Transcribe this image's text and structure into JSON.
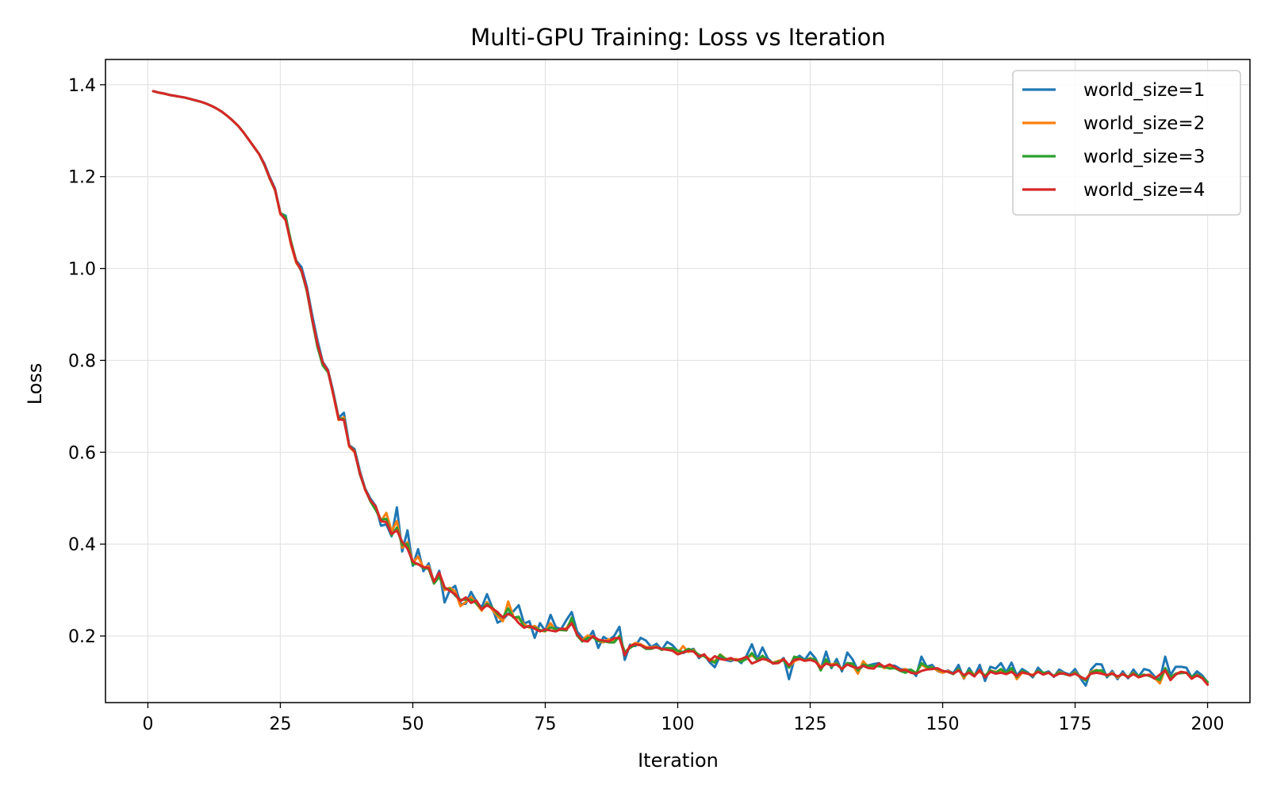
{
  "chart_data": {
    "type": "line",
    "title": "Multi-GPU Training: Loss vs Iteration",
    "xlabel": "Iteration",
    "ylabel": "Loss",
    "xlim": [
      -8,
      208
    ],
    "ylim": [
      0.055,
      1.455
    ],
    "xticks": [
      0,
      25,
      50,
      75,
      100,
      125,
      150,
      175,
      200
    ],
    "yticks": [
      0.2,
      0.4,
      0.6,
      0.8,
      1.0,
      1.2,
      1.4
    ],
    "ytick_labels": [
      "0.2",
      "0.4",
      "0.6",
      "0.8",
      "1.0",
      "1.2",
      "1.4"
    ],
    "grid": true,
    "legend_position": "top-right",
    "x": [
      1,
      2,
      3,
      4,
      5,
      6,
      7,
      8,
      9,
      10,
      11,
      12,
      13,
      14,
      15,
      16,
      17,
      18,
      19,
      20,
      21,
      22,
      23,
      24,
      25,
      26,
      27,
      28,
      29,
      30,
      31,
      32,
      33,
      34,
      35,
      36,
      37,
      38,
      39,
      40,
      41,
      42,
      43,
      44,
      45,
      46,
      47,
      48,
      49,
      50,
      51,
      52,
      53,
      54,
      55,
      56,
      57,
      58,
      59,
      60,
      61,
      62,
      63,
      64,
      65,
      66,
      67,
      68,
      69,
      70,
      71,
      72,
      73,
      74,
      75,
      76,
      77,
      78,
      79,
      80,
      81,
      82,
      83,
      84,
      85,
      86,
      87,
      88,
      89,
      90,
      91,
      92,
      93,
      94,
      95,
      96,
      97,
      98,
      99,
      100,
      101,
      102,
      103,
      104,
      105,
      106,
      107,
      108,
      109,
      110,
      111,
      112,
      113,
      114,
      115,
      116,
      117,
      118,
      119,
      120,
      121,
      122,
      123,
      124,
      125,
      126,
      127,
      128,
      129,
      130,
      131,
      132,
      133,
      134,
      135,
      136,
      137,
      138,
      139,
      140,
      141,
      142,
      143,
      144,
      145,
      146,
      147,
      148,
      149,
      150,
      151,
      152,
      153,
      154,
      155,
      156,
      157,
      158,
      159,
      160,
      161,
      162,
      163,
      164,
      165,
      166,
      167,
      168,
      169,
      170,
      171,
      172,
      173,
      174,
      175,
      176,
      177,
      178,
      179,
      180,
      181,
      182,
      183,
      184,
      185,
      186,
      187,
      188,
      189,
      190,
      191,
      192,
      193,
      194,
      195,
      196,
      197,
      198,
      199,
      200
    ],
    "series": [
      {
        "name": "world_size=1",
        "color": "#1f77b4",
        "values": [
          1.386,
          1.383,
          1.381,
          1.378,
          1.376,
          1.374,
          1.372,
          1.369,
          1.366,
          1.363,
          1.359,
          1.354,
          1.348,
          1.341,
          1.332,
          1.322,
          1.311,
          1.297,
          1.281,
          1.265,
          1.249,
          1.228,
          1.199,
          1.174,
          1.12,
          1.115,
          1.056,
          1.017,
          1.003,
          0.96,
          0.899,
          0.844,
          0.797,
          0.779,
          0.731,
          0.675,
          0.686,
          0.615,
          0.607,
          0.56,
          0.521,
          0.499,
          0.483,
          0.44,
          0.443,
          0.417,
          0.48,
          0.384,
          0.43,
          0.353,
          0.389,
          0.341,
          0.358,
          0.316,
          0.342,
          0.273,
          0.3,
          0.309,
          0.27,
          0.27,
          0.296,
          0.275,
          0.262,
          0.291,
          0.262,
          0.229,
          0.235,
          0.249,
          0.254,
          0.267,
          0.227,
          0.232,
          0.196,
          0.228,
          0.211,
          0.246,
          0.219,
          0.215,
          0.235,
          0.252,
          0.21,
          0.196,
          0.192,
          0.211,
          0.174,
          0.198,
          0.191,
          0.2,
          0.22,
          0.148,
          0.181,
          0.178,
          0.196,
          0.19,
          0.176,
          0.183,
          0.17,
          0.187,
          0.18,
          0.167,
          0.163,
          0.168,
          0.172,
          0.152,
          0.16,
          0.143,
          0.132,
          0.157,
          0.148,
          0.145,
          0.15,
          0.141,
          0.157,
          0.182,
          0.15,
          0.175,
          0.151,
          0.14,
          0.143,
          0.152,
          0.106,
          0.149,
          0.157,
          0.148,
          0.165,
          0.151,
          0.128,
          0.166,
          0.13,
          0.15,
          0.123,
          0.164,
          0.149,
          0.125,
          0.135,
          0.136,
          0.139,
          0.141,
          0.13,
          0.136,
          0.135,
          0.128,
          0.127,
          0.126,
          0.113,
          0.155,
          0.133,
          0.137,
          0.124,
          0.12,
          0.125,
          0.119,
          0.137,
          0.107,
          0.13,
          0.113,
          0.137,
          0.102,
          0.133,
          0.129,
          0.141,
          0.121,
          0.142,
          0.114,
          0.128,
          0.121,
          0.11,
          0.131,
          0.119,
          0.123,
          0.111,
          0.127,
          0.12,
          0.116,
          0.128,
          0.108,
          0.092,
          0.127,
          0.139,
          0.138,
          0.11,
          0.124,
          0.106,
          0.123,
          0.108,
          0.127,
          0.112,
          0.128,
          0.125,
          0.112,
          0.105,
          0.155,
          0.115,
          0.133,
          0.133,
          0.131,
          0.11,
          0.123,
          0.114,
          0.099
        ]
      },
      {
        "name": "world_size=2",
        "color": "#ff7f0e",
        "values": [
          1.386,
          1.383,
          1.381,
          1.378,
          1.376,
          1.374,
          1.372,
          1.369,
          1.366,
          1.363,
          1.359,
          1.354,
          1.348,
          1.341,
          1.332,
          1.322,
          1.311,
          1.297,
          1.281,
          1.265,
          1.249,
          1.225,
          1.195,
          1.17,
          1.118,
          1.108,
          1.052,
          1.012,
          0.996,
          0.95,
          0.89,
          0.836,
          0.79,
          0.776,
          0.724,
          0.67,
          0.676,
          0.612,
          0.6,
          0.556,
          0.518,
          0.494,
          0.476,
          0.45,
          0.468,
          0.428,
          0.45,
          0.392,
          0.404,
          0.36,
          0.373,
          0.349,
          0.352,
          0.318,
          0.33,
          0.3,
          0.305,
          0.297,
          0.265,
          0.274,
          0.285,
          0.27,
          0.255,
          0.274,
          0.257,
          0.243,
          0.232,
          0.275,
          0.242,
          0.238,
          0.226,
          0.218,
          0.222,
          0.212,
          0.21,
          0.228,
          0.211,
          0.214,
          0.217,
          0.236,
          0.202,
          0.191,
          0.201,
          0.198,
          0.189,
          0.186,
          0.193,
          0.19,
          0.196,
          0.162,
          0.178,
          0.185,
          0.182,
          0.176,
          0.175,
          0.177,
          0.17,
          0.173,
          0.168,
          0.162,
          0.178,
          0.165,
          0.17,
          0.155,
          0.157,
          0.15,
          0.145,
          0.16,
          0.151,
          0.148,
          0.15,
          0.145,
          0.152,
          0.158,
          0.149,
          0.155,
          0.146,
          0.142,
          0.146,
          0.149,
          0.132,
          0.145,
          0.15,
          0.146,
          0.152,
          0.147,
          0.132,
          0.143,
          0.138,
          0.141,
          0.128,
          0.14,
          0.137,
          0.118,
          0.145,
          0.132,
          0.132,
          0.137,
          0.13,
          0.133,
          0.13,
          0.125,
          0.128,
          0.122,
          0.12,
          0.138,
          0.13,
          0.132,
          0.125,
          0.12,
          0.124,
          0.117,
          0.128,
          0.108,
          0.124,
          0.116,
          0.122,
          0.113,
          0.125,
          0.122,
          0.124,
          0.119,
          0.129,
          0.106,
          0.12,
          0.118,
          0.115,
          0.124,
          0.117,
          0.12,
          0.113,
          0.122,
          0.118,
          0.114,
          0.121,
          0.11,
          0.104,
          0.122,
          0.126,
          0.122,
          0.113,
          0.12,
          0.109,
          0.118,
          0.111,
          0.12,
          0.11,
          0.114,
          0.116,
          0.109,
          0.097,
          0.128,
          0.11,
          0.118,
          0.122,
          0.12,
          0.107,
          0.116,
          0.11,
          0.096
        ]
      },
      {
        "name": "world_size=3",
        "color": "#2ca02c",
        "values": [
          1.386,
          1.383,
          1.381,
          1.378,
          1.376,
          1.374,
          1.372,
          1.369,
          1.366,
          1.363,
          1.359,
          1.354,
          1.348,
          1.341,
          1.332,
          1.322,
          1.311,
          1.297,
          1.281,
          1.265,
          1.249,
          1.225,
          1.196,
          1.171,
          1.121,
          1.112,
          1.06,
          1.016,
          0.993,
          0.952,
          0.888,
          0.829,
          0.789,
          0.774,
          0.728,
          0.674,
          0.672,
          0.614,
          0.604,
          0.552,
          0.52,
          0.493,
          0.474,
          0.453,
          0.455,
          0.419,
          0.436,
          0.398,
          0.4,
          0.356,
          0.357,
          0.348,
          0.346,
          0.314,
          0.329,
          0.304,
          0.302,
          0.288,
          0.279,
          0.279,
          0.279,
          0.271,
          0.259,
          0.27,
          0.262,
          0.248,
          0.24,
          0.26,
          0.24,
          0.242,
          0.22,
          0.22,
          0.218,
          0.213,
          0.211,
          0.219,
          0.215,
          0.213,
          0.212,
          0.24,
          0.201,
          0.188,
          0.196,
          0.197,
          0.189,
          0.189,
          0.186,
          0.186,
          0.2,
          0.165,
          0.174,
          0.181,
          0.18,
          0.172,
          0.172,
          0.176,
          0.17,
          0.174,
          0.173,
          0.168,
          0.165,
          0.172,
          0.168,
          0.159,
          0.156,
          0.147,
          0.142,
          0.159,
          0.15,
          0.15,
          0.148,
          0.144,
          0.15,
          0.163,
          0.147,
          0.157,
          0.147,
          0.141,
          0.144,
          0.147,
          0.131,
          0.155,
          0.152,
          0.147,
          0.151,
          0.148,
          0.125,
          0.149,
          0.133,
          0.141,
          0.127,
          0.141,
          0.14,
          0.125,
          0.138,
          0.135,
          0.135,
          0.134,
          0.133,
          0.129,
          0.13,
          0.124,
          0.12,
          0.127,
          0.119,
          0.141,
          0.133,
          0.131,
          0.128,
          0.124,
          0.122,
          0.117,
          0.128,
          0.112,
          0.125,
          0.113,
          0.126,
          0.113,
          0.125,
          0.12,
          0.128,
          0.119,
          0.13,
          0.111,
          0.124,
          0.119,
          0.113,
          0.124,
          0.12,
          0.12,
          0.113,
          0.121,
          0.117,
          0.114,
          0.12,
          0.112,
          0.103,
          0.12,
          0.125,
          0.125,
          0.113,
          0.118,
          0.111,
          0.117,
          0.111,
          0.119,
          0.113,
          0.116,
          0.113,
          0.108,
          0.104,
          0.13,
          0.11,
          0.118,
          0.119,
          0.12,
          0.111,
          0.116,
          0.11,
          0.1
        ]
      },
      {
        "name": "world_size=4",
        "color": "#d62728",
        "values": [
          1.386,
          1.383,
          1.381,
          1.378,
          1.376,
          1.374,
          1.372,
          1.369,
          1.366,
          1.363,
          1.359,
          1.354,
          1.348,
          1.341,
          1.332,
          1.322,
          1.311,
          1.297,
          1.281,
          1.265,
          1.249,
          1.226,
          1.197,
          1.172,
          1.12,
          1.105,
          1.055,
          1.015,
          0.995,
          0.955,
          0.89,
          0.835,
          0.795,
          0.777,
          0.726,
          0.672,
          0.67,
          0.614,
          0.602,
          0.554,
          0.519,
          0.495,
          0.482,
          0.45,
          0.448,
          0.422,
          0.43,
          0.405,
          0.39,
          0.362,
          0.356,
          0.35,
          0.348,
          0.318,
          0.338,
          0.306,
          0.298,
          0.291,
          0.276,
          0.284,
          0.272,
          0.277,
          0.258,
          0.267,
          0.26,
          0.252,
          0.24,
          0.248,
          0.242,
          0.228,
          0.218,
          0.222,
          0.216,
          0.21,
          0.214,
          0.212,
          0.21,
          0.216,
          0.214,
          0.228,
          0.203,
          0.19,
          0.188,
          0.2,
          0.192,
          0.19,
          0.188,
          0.195,
          0.196,
          0.158,
          0.178,
          0.182,
          0.18,
          0.174,
          0.174,
          0.175,
          0.172,
          0.17,
          0.168,
          0.16,
          0.164,
          0.168,
          0.166,
          0.155,
          0.16,
          0.146,
          0.156,
          0.15,
          0.148,
          0.152,
          0.147,
          0.15,
          0.155,
          0.14,
          0.145,
          0.15,
          0.148,
          0.14,
          0.141,
          0.15,
          0.136,
          0.148,
          0.15,
          0.146,
          0.148,
          0.144,
          0.13,
          0.14,
          0.136,
          0.138,
          0.128,
          0.138,
          0.133,
          0.13,
          0.135,
          0.13,
          0.129,
          0.14,
          0.133,
          0.138,
          0.132,
          0.125,
          0.126,
          0.12,
          0.118,
          0.124,
          0.127,
          0.128,
          0.13,
          0.124,
          0.122,
          0.118,
          0.125,
          0.115,
          0.12,
          0.112,
          0.126,
          0.11,
          0.122,
          0.118,
          0.12,
          0.117,
          0.122,
          0.113,
          0.121,
          0.118,
          0.114,
          0.122,
          0.116,
          0.12,
          0.112,
          0.118,
          0.118,
          0.114,
          0.118,
          0.111,
          0.106,
          0.118,
          0.12,
          0.118,
          0.115,
          0.118,
          0.112,
          0.117,
          0.11,
          0.117,
          0.11,
          0.114,
          0.115,
          0.107,
          0.116,
          0.125,
          0.104,
          0.116,
          0.122,
          0.12,
          0.107,
          0.114,
          0.108,
          0.094
        ]
      }
    ]
  }
}
